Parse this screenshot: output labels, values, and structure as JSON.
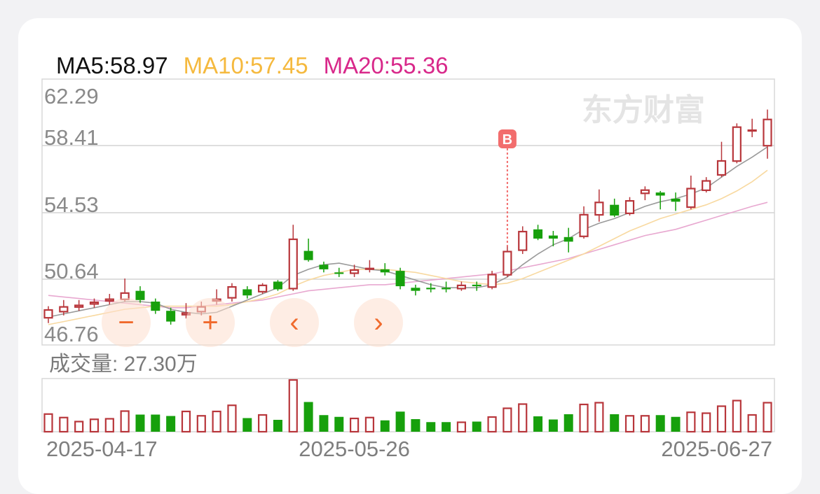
{
  "ma_legend": {
    "ma5": "MA5:58.97",
    "ma10": "MA10:57.45",
    "ma20": "MA20:55.36"
  },
  "watermark": "东方财富",
  "buy_marker": "B",
  "volume_label": "成交量: 27.30万",
  "controls": {
    "zoom_out": "−",
    "zoom_in": "+",
    "prev": "‹",
    "next": "›"
  },
  "colors": {
    "up": "#b8363b",
    "down": "#17a00c",
    "ma5": "#9a9a9a",
    "ma10": "#f8d9a0",
    "ma20": "#e8a8d0",
    "buy_marker": "#f26d6d"
  },
  "chart_data": {
    "type": "candlestick",
    "y_ticks": [
      "62.29",
      "58.41",
      "54.53",
      "50.64",
      "46.76"
    ],
    "ylim": [
      46.76,
      62.29
    ],
    "x_labels": [
      {
        "index": 0,
        "label": "2025-04-17"
      },
      {
        "index": 20,
        "label": "2025-05-26"
      },
      {
        "index": 38,
        "label": "2025-06-27"
      }
    ],
    "buy_marker_index": 30,
    "candles": [
      {
        "o": 47.8,
        "c": 48.4,
        "h": 48.6,
        "l": 47.5,
        "v": 1.05
      },
      {
        "o": 48.2,
        "c": 48.6,
        "h": 49.0,
        "l": 48.0,
        "v": 0.85
      },
      {
        "o": 48.5,
        "c": 48.7,
        "h": 49.0,
        "l": 48.3,
        "v": 0.62
      },
      {
        "o": 48.7,
        "c": 48.9,
        "h": 49.1,
        "l": 48.5,
        "v": 0.75
      },
      {
        "o": 48.9,
        "c": 49.1,
        "h": 49.4,
        "l": 48.7,
        "v": 0.78
      },
      {
        "o": 49.0,
        "c": 49.5,
        "h": 50.4,
        "l": 48.9,
        "v": 1.22
      },
      {
        "o": 49.6,
        "c": 49.0,
        "h": 49.9,
        "l": 48.8,
        "v": 0.98
      },
      {
        "o": 48.9,
        "c": 48.3,
        "h": 49.1,
        "l": 48.1,
        "v": 0.98
      },
      {
        "o": 48.3,
        "c": 47.6,
        "h": 48.5,
        "l": 47.4,
        "v": 0.9
      },
      {
        "o": 48.0,
        "c": 48.2,
        "h": 48.8,
        "l": 47.8,
        "v": 1.2
      },
      {
        "o": 48.2,
        "c": 48.6,
        "h": 48.9,
        "l": 48.0,
        "v": 0.95
      },
      {
        "o": 48.9,
        "c": 49.1,
        "h": 49.7,
        "l": 48.7,
        "v": 1.2
      },
      {
        "o": 49.1,
        "c": 49.9,
        "h": 50.1,
        "l": 48.9,
        "v": 1.55
      },
      {
        "o": 49.7,
        "c": 49.3,
        "h": 49.9,
        "l": 49.1,
        "v": 0.78
      },
      {
        "o": 49.5,
        "c": 50.0,
        "h": 50.1,
        "l": 49.4,
        "v": 1.0
      },
      {
        "o": 50.2,
        "c": 49.7,
        "h": 50.3,
        "l": 49.6,
        "v": 0.68
      },
      {
        "o": 49.7,
        "c": 53.0,
        "h": 53.9,
        "l": 49.6,
        "v": 3.0
      },
      {
        "o": 52.2,
        "c": 51.6,
        "h": 53.0,
        "l": 51.5,
        "v": 1.7
      },
      {
        "o": 51.3,
        "c": 51.0,
        "h": 51.5,
        "l": 50.8,
        "v": 0.95
      },
      {
        "o": 50.8,
        "c": 50.7,
        "h": 51.1,
        "l": 50.5,
        "v": 0.85
      },
      {
        "o": 50.7,
        "c": 51.0,
        "h": 51.3,
        "l": 50.5,
        "v": 0.8
      },
      {
        "o": 51.0,
        "c": 51.1,
        "h": 51.6,
        "l": 50.8,
        "v": 0.85
      },
      {
        "o": 51.0,
        "c": 50.8,
        "h": 51.4,
        "l": 50.6,
        "v": 0.65
      },
      {
        "o": 50.9,
        "c": 49.9,
        "h": 51.1,
        "l": 49.7,
        "v": 1.15
      },
      {
        "o": 49.8,
        "c": 49.6,
        "h": 50.0,
        "l": 49.3,
        "v": 0.72
      },
      {
        "o": 49.8,
        "c": 49.7,
        "h": 50.1,
        "l": 49.5,
        "v": 0.55
      },
      {
        "o": 49.8,
        "c": 49.7,
        "h": 50.2,
        "l": 49.5,
        "v": 0.55
      },
      {
        "o": 49.7,
        "c": 50.0,
        "h": 50.2,
        "l": 49.6,
        "v": 0.58
      },
      {
        "o": 50.0,
        "c": 49.9,
        "h": 50.2,
        "l": 49.6,
        "v": 0.58
      },
      {
        "o": 49.8,
        "c": 50.7,
        "h": 50.9,
        "l": 49.7,
        "v": 0.88
      },
      {
        "o": 50.6,
        "c": 52.2,
        "h": 52.5,
        "l": 50.5,
        "v": 1.38
      },
      {
        "o": 52.2,
        "c": 53.5,
        "h": 53.8,
        "l": 52.0,
        "v": 1.62
      },
      {
        "o": 53.6,
        "c": 53.0,
        "h": 53.9,
        "l": 52.9,
        "v": 0.88
      },
      {
        "o": 53.2,
        "c": 53.0,
        "h": 53.5,
        "l": 52.5,
        "v": 0.7
      },
      {
        "o": 53.1,
        "c": 52.8,
        "h": 53.7,
        "l": 52.1,
        "v": 1.0
      },
      {
        "o": 53.1,
        "c": 54.6,
        "h": 55.1,
        "l": 53.0,
        "v": 1.6
      },
      {
        "o": 54.5,
        "c": 55.4,
        "h": 56.2,
        "l": 54.1,
        "v": 1.7
      },
      {
        "o": 55.2,
        "c": 54.5,
        "h": 55.6,
        "l": 54.4,
        "v": 1.0
      },
      {
        "o": 54.6,
        "c": 55.5,
        "h": 55.7,
        "l": 54.5,
        "v": 0.95
      }
    ],
    "tail_candles": [
      {
        "o": 55.9,
        "c": 56.2,
        "h": 56.4,
        "l": 55.5,
        "v": 0.95
      },
      {
        "o": 56.0,
        "c": 55.8,
        "h": 56.1,
        "l": 54.9,
        "v": 0.95
      },
      {
        "o": 55.6,
        "c": 55.4,
        "h": 56.0,
        "l": 54.8,
        "v": 0.85
      },
      {
        "o": 55.0,
        "c": 56.3,
        "h": 57.1,
        "l": 54.9,
        "v": 1.15
      },
      {
        "o": 56.1,
        "c": 56.8,
        "h": 57.0,
        "l": 56.0,
        "v": 1.1
      },
      {
        "o": 57.1,
        "c": 58.1,
        "h": 59.3,
        "l": 57.0,
        "v": 1.5
      },
      {
        "o": 58.0,
        "c": 60.3,
        "h": 60.5,
        "l": 57.9,
        "v": 1.82
      },
      {
        "o": 60.0,
        "c": 60.1,
        "h": 60.8,
        "l": 59.6,
        "v": 1.0
      },
      {
        "o": 59.0,
        "c": 60.8,
        "h": 61.4,
        "l": 58.2,
        "v": 1.7
      }
    ],
    "ma5": [
      47.9,
      48.1,
      48.3,
      48.5,
      48.7,
      48.9,
      48.9,
      48.8,
      48.4,
      48.2,
      48.1,
      48.2,
      48.6,
      49.0,
      49.4,
      49.8,
      50.6,
      51.0,
      51.3,
      51.4,
      51.2,
      51.0,
      50.9,
      50.6,
      50.3,
      50.0,
      49.8,
      49.8,
      49.8,
      50.0,
      50.5,
      51.3,
      52.0,
      52.6,
      53.0,
      53.6,
      54.0,
      54.3,
      54.7,
      55.1,
      55.4,
      55.6,
      55.9,
      56.3,
      57.0,
      57.7,
      58.3,
      58.97
    ],
    "ma10": [
      47.4,
      47.6,
      47.8,
      48.0,
      48.2,
      48.4,
      48.5,
      48.6,
      48.6,
      48.6,
      48.6,
      48.6,
      48.7,
      48.9,
      49.1,
      49.4,
      49.9,
      50.3,
      50.6,
      50.8,
      51.0,
      51.0,
      51.0,
      50.9,
      50.8,
      50.6,
      50.4,
      50.2,
      50.1,
      50.0,
      50.1,
      50.4,
      50.8,
      51.2,
      51.6,
      52.0,
      52.5,
      53.0,
      53.5,
      53.9,
      54.3,
      54.6,
      54.9,
      55.2,
      55.6,
      56.1,
      56.7,
      57.45
    ],
    "ma20": [
      49.3,
      49.2,
      49.1,
      49.0,
      48.9,
      48.8,
      48.7,
      48.6,
      48.5,
      48.5,
      48.6,
      48.7,
      48.8,
      48.9,
      49.0,
      49.2,
      49.4,
      49.6,
      49.7,
      49.8,
      49.9,
      50.0,
      50.0,
      50.1,
      50.2,
      50.3,
      50.4,
      50.5,
      50.6,
      50.7,
      50.9,
      51.1,
      51.3,
      51.5,
      51.7,
      52.0,
      52.3,
      52.6,
      52.9,
      53.2,
      53.4,
      53.6,
      53.9,
      54.2,
      54.5,
      54.8,
      55.1,
      55.36
    ]
  }
}
